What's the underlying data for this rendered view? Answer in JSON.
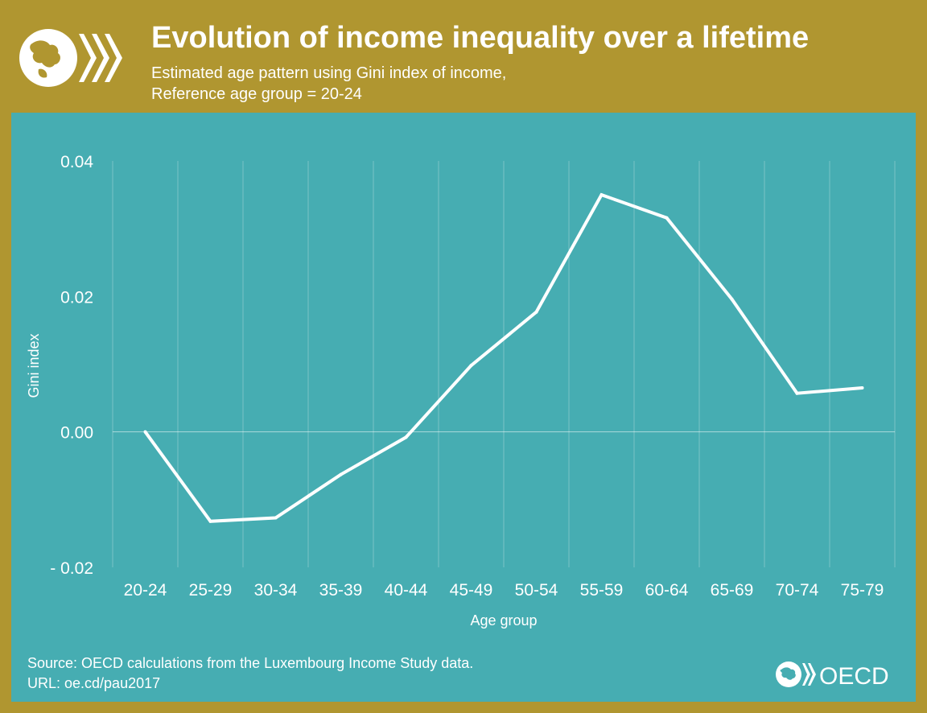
{
  "header": {
    "title": "Evolution of income inequality over a lifetime",
    "subtitle_line1": "Estimated age pattern using Gini index of income,",
    "subtitle_line2": "Reference age group = 20-24"
  },
  "footer": {
    "source": "Source: OECD calculations from the Luxembourg Income Study data.",
    "url": "URL: oe.cd/pau2017"
  },
  "brand": {
    "logo_text": "OECD"
  },
  "colors": {
    "background": "#b09630",
    "panel": "#46adb2",
    "line": "#ffffff"
  },
  "chart_data": {
    "type": "line",
    "xlabel": "Age group",
    "ylabel": "Gini index",
    "categories": [
      "20-24",
      "25-29",
      "30-34",
      "35-39",
      "40-44",
      "45-49",
      "50-54",
      "55-59",
      "60-64",
      "65-69",
      "70-74",
      "75-79"
    ],
    "values": [
      0.0,
      -0.0132,
      -0.0127,
      -0.0063,
      -0.0008,
      0.0098,
      0.0177,
      0.035,
      0.0316,
      0.0196,
      0.0057,
      0.0065
    ],
    "ylim": [
      -0.02,
      0.04
    ],
    "yticks": [
      -0.02,
      0.0,
      0.02,
      0.04
    ],
    "ytick_labels": [
      "- 0.02",
      "0.00",
      "0.02",
      "0.04"
    ],
    "grid": "vertical",
    "legend": "none"
  }
}
